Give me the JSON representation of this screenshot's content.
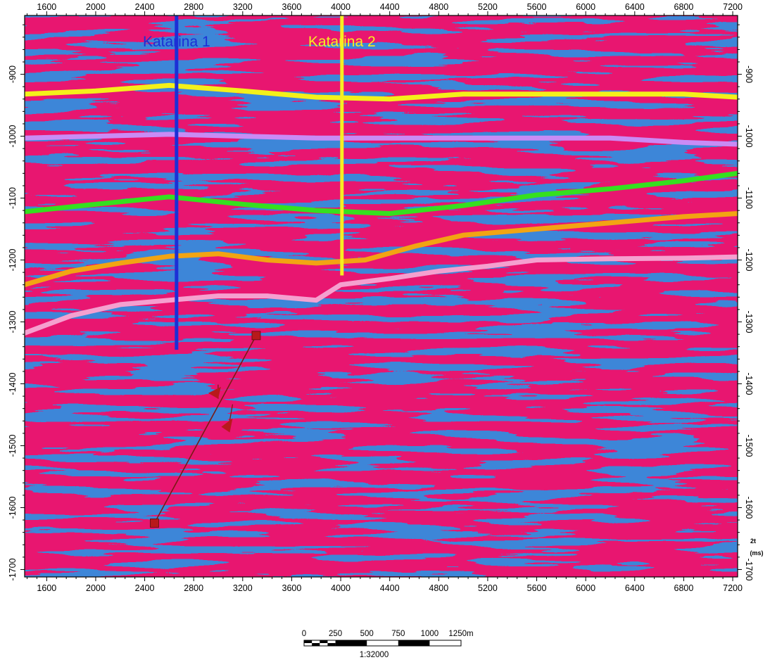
{
  "chart_data": {
    "type": "seismic-section",
    "x_axis": {
      "range": [
        1420,
        7240
      ],
      "ticks": [
        1600,
        2000,
        2400,
        2800,
        3200,
        3600,
        4000,
        4400,
        4800,
        5200,
        5600,
        6000,
        6400,
        6800,
        7200
      ],
      "position": "top and bottom"
    },
    "y_axis": {
      "range": [
        -805,
        -1712
      ],
      "ticks": [
        -900,
        -1000,
        -1100,
        -1200,
        -1300,
        -1400,
        -1500,
        -1600,
        -1700
      ],
      "unit_label_line1": "2t",
      "unit_label_line2": "(ms)",
      "position": "left and right"
    },
    "wells": [
      {
        "name": "Katarina 1",
        "x": 2660,
        "y_top": -805,
        "y_bottom": -1345,
        "color": "#1c2fd6"
      },
      {
        "name": "Katarina 2",
        "x": 4010,
        "y_top": -805,
        "y_bottom": -1225,
        "color": "#f7ee21"
      }
    ],
    "horizons": [
      {
        "color": "#f4f01a",
        "points": [
          [
            1420,
            -932
          ],
          [
            2000,
            -927
          ],
          [
            2600,
            -918
          ],
          [
            3200,
            -927
          ],
          [
            3800,
            -937
          ],
          [
            4400,
            -940
          ],
          [
            5000,
            -932
          ],
          [
            5600,
            -932
          ],
          [
            6200,
            -932
          ],
          [
            6800,
            -932
          ],
          [
            7240,
            -937
          ]
        ]
      },
      {
        "color": "#c98bf5",
        "points": [
          [
            1420,
            -1003
          ],
          [
            2000,
            -1000
          ],
          [
            2600,
            -997
          ],
          [
            3200,
            -1000
          ],
          [
            3800,
            -1003
          ],
          [
            4400,
            -1003
          ],
          [
            5000,
            -1003
          ],
          [
            5600,
            -1003
          ],
          [
            6200,
            -1003
          ],
          [
            6800,
            -1010
          ],
          [
            7240,
            -1013
          ]
        ]
      },
      {
        "color": "#35e01f",
        "points": [
          [
            1420,
            -1122
          ],
          [
            2000,
            -1110
          ],
          [
            2600,
            -1098
          ],
          [
            3200,
            -1110
          ],
          [
            3800,
            -1120
          ],
          [
            4400,
            -1125
          ],
          [
            5000,
            -1112
          ],
          [
            5600,
            -1095
          ],
          [
            6200,
            -1085
          ],
          [
            6800,
            -1072
          ],
          [
            7240,
            -1060
          ]
        ]
      },
      {
        "color": "#f2a413",
        "points": [
          [
            1420,
            -1240
          ],
          [
            1800,
            -1218
          ],
          [
            2200,
            -1205
          ],
          [
            2600,
            -1194
          ],
          [
            3000,
            -1190
          ],
          [
            3400,
            -1200
          ],
          [
            3800,
            -1205
          ],
          [
            4200,
            -1200
          ],
          [
            4600,
            -1178
          ],
          [
            5000,
            -1160
          ],
          [
            5600,
            -1150
          ],
          [
            6200,
            -1140
          ],
          [
            6800,
            -1130
          ],
          [
            7240,
            -1125
          ]
        ]
      },
      {
        "color": "#f5a0cf",
        "points": [
          [
            1420,
            -1318
          ],
          [
            1800,
            -1290
          ],
          [
            2200,
            -1272
          ],
          [
            2600,
            -1265
          ],
          [
            3000,
            -1258
          ],
          [
            3400,
            -1258
          ],
          [
            3800,
            -1265
          ],
          [
            4000,
            -1240
          ],
          [
            4400,
            -1230
          ],
          [
            4800,
            -1218
          ],
          [
            5200,
            -1210
          ],
          [
            5600,
            -1200
          ],
          [
            6200,
            -1198
          ],
          [
            6800,
            -1197
          ],
          [
            7240,
            -1195
          ]
        ]
      }
    ],
    "fault": {
      "color": "#7a1a14",
      "handle_color": "#b8191b",
      "top": [
        3310,
        -1322
      ],
      "bottom": [
        2480,
        -1625
      ],
      "throw_markers": [
        [
          2965,
          -1415
        ],
        [
          3060,
          -1465
        ]
      ]
    },
    "scale_bar": {
      "labels": [
        "0",
        "250",
        "500",
        "750",
        "1000",
        "1250m"
      ],
      "ratio": "1:32000"
    }
  }
}
